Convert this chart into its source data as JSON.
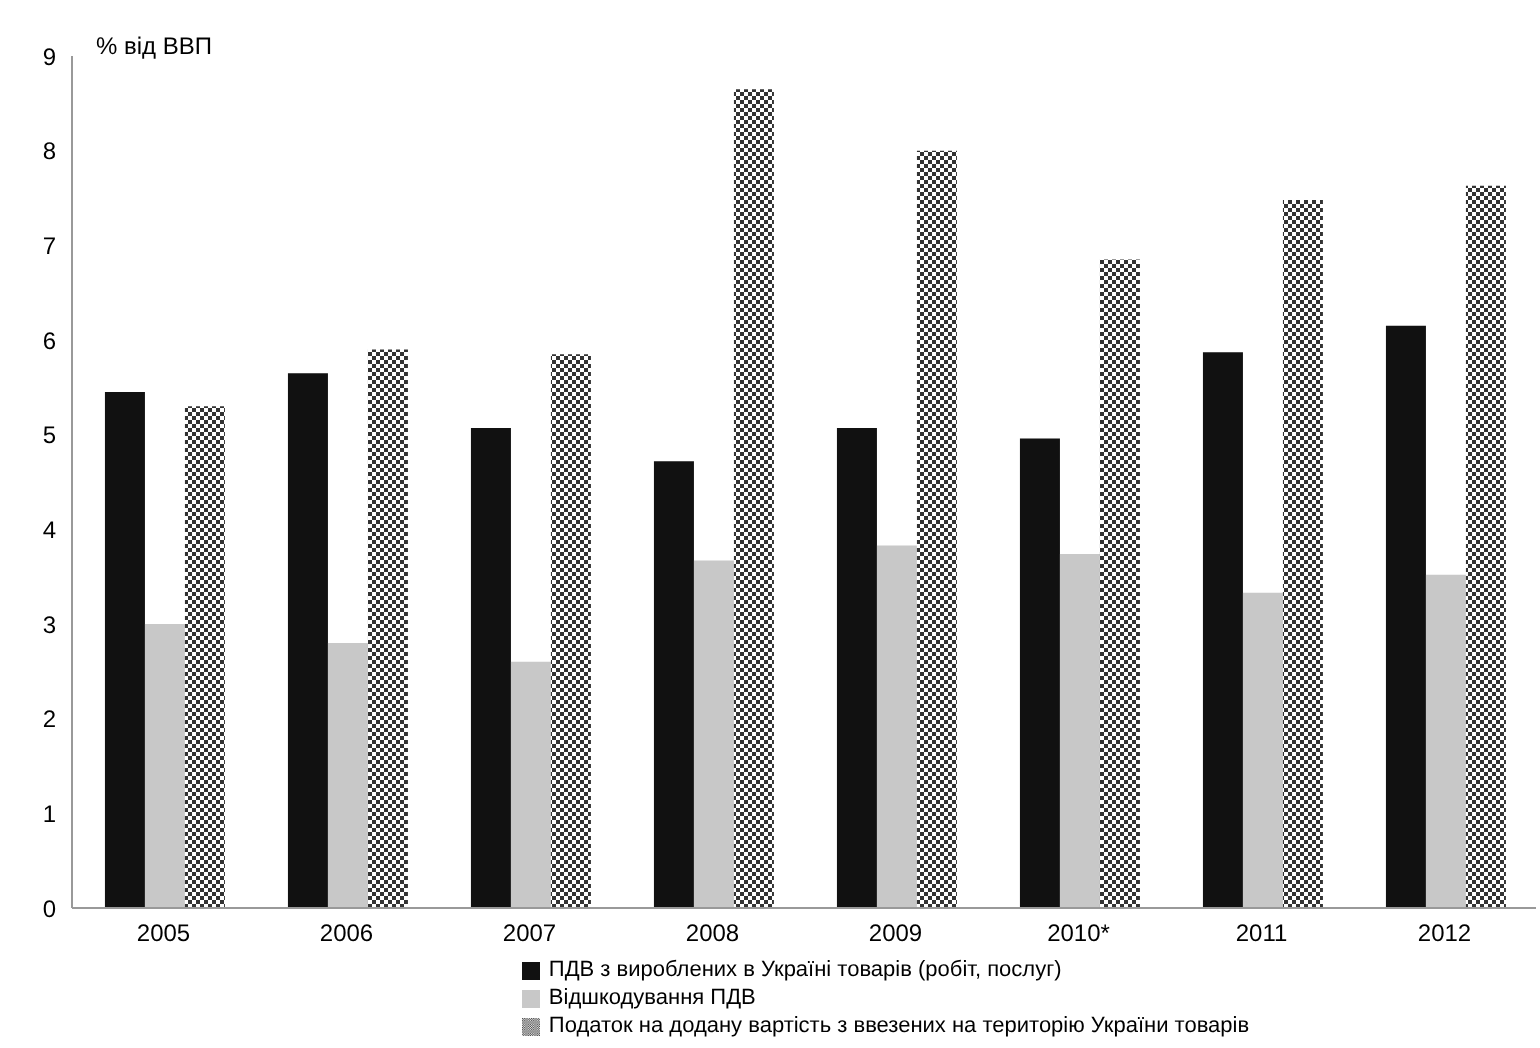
{
  "chart_data": {
    "type": "bar",
    "ylabel": "% від ВВП",
    "categories": [
      "2005",
      "2006",
      "2007",
      "2008",
      "2009",
      "2010*",
      "2011",
      "2012"
    ],
    "series": [
      {
        "name": "ПДВ з вироблених в Україні товарів (робіт, послуг)",
        "color": "#111111",
        "values": [
          5.45,
          5.65,
          5.07,
          4.72,
          5.07,
          4.96,
          5.87,
          6.15
        ]
      },
      {
        "name": "Відшкодування ПДВ",
        "color": "#c8c8c8",
        "values": [
          3.0,
          2.8,
          2.6,
          3.67,
          3.83,
          3.74,
          3.33,
          3.52
        ]
      },
      {
        "name": "Податок на додану вартість з ввезених на територію України товарів",
        "color": "#333333",
        "values": [
          5.3,
          5.9,
          5.85,
          8.65,
          8.0,
          6.85,
          7.48,
          7.63
        ]
      }
    ],
    "ylim": [
      0,
      9
    ],
    "yticks": [
      0,
      1,
      2,
      3,
      4,
      5,
      6,
      7,
      8,
      9
    ],
    "grid": false,
    "legend": "bottom"
  }
}
